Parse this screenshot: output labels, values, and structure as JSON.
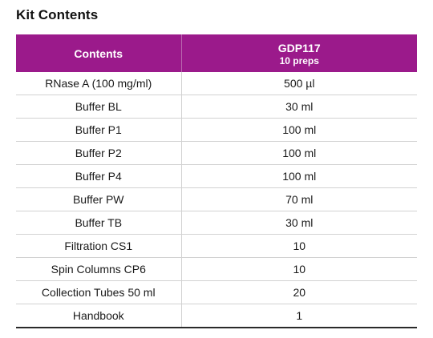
{
  "title": "Kit Contents",
  "header": {
    "contents_label": "Contents",
    "product_code": "GDP117",
    "preps": "10 preps"
  },
  "colors": {
    "header_background": "#9b1a8b",
    "header_text": "#ffffff"
  },
  "rows": [
    {
      "item": "RNase A (100 mg/ml)",
      "amount": "500 µl"
    },
    {
      "item": "Buffer BL",
      "amount": "30 ml"
    },
    {
      "item": "Buffer P1",
      "amount": "100 ml"
    },
    {
      "item": "Buffer P2",
      "amount": "100 ml"
    },
    {
      "item": "Buffer P4",
      "amount": "100 ml"
    },
    {
      "item": "Buffer PW",
      "amount": "70 ml"
    },
    {
      "item": "Buffer TB",
      "amount": "30 ml"
    },
    {
      "item": "Filtration CS1",
      "amount": "10"
    },
    {
      "item": "Spin Columns CP6",
      "amount": "10"
    },
    {
      "item": "Collection Tubes 50 ml",
      "amount": "20"
    },
    {
      "item": "Handbook",
      "amount": "1"
    }
  ]
}
